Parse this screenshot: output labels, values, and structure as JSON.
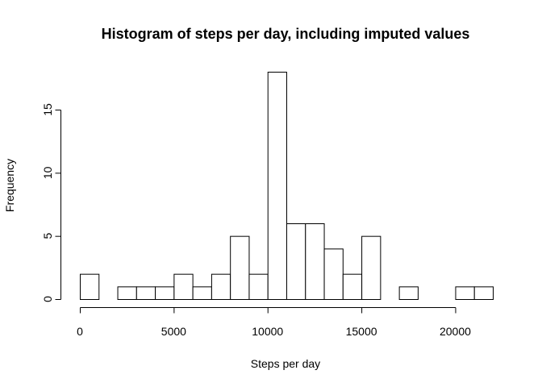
{
  "chart_data": {
    "type": "bar",
    "title": "Histogram of steps per day, including imputed values",
    "xlabel": "Steps per day",
    "ylabel": "Frequency",
    "bin_width": 1000,
    "bins": [
      {
        "start": 0,
        "end": 1000,
        "count": 2
      },
      {
        "start": 1000,
        "end": 2000,
        "count": 0
      },
      {
        "start": 2000,
        "end": 3000,
        "count": 1
      },
      {
        "start": 3000,
        "end": 4000,
        "count": 1
      },
      {
        "start": 4000,
        "end": 5000,
        "count": 1
      },
      {
        "start": 5000,
        "end": 6000,
        "count": 2
      },
      {
        "start": 6000,
        "end": 7000,
        "count": 1
      },
      {
        "start": 7000,
        "end": 8000,
        "count": 2
      },
      {
        "start": 8000,
        "end": 9000,
        "count": 5
      },
      {
        "start": 9000,
        "end": 10000,
        "count": 2
      },
      {
        "start": 10000,
        "end": 11000,
        "count": 18
      },
      {
        "start": 11000,
        "end": 12000,
        "count": 6
      },
      {
        "start": 12000,
        "end": 13000,
        "count": 6
      },
      {
        "start": 13000,
        "end": 14000,
        "count": 4
      },
      {
        "start": 14000,
        "end": 15000,
        "count": 2
      },
      {
        "start": 15000,
        "end": 16000,
        "count": 5
      },
      {
        "start": 16000,
        "end": 17000,
        "count": 0
      },
      {
        "start": 17000,
        "end": 18000,
        "count": 1
      },
      {
        "start": 18000,
        "end": 19000,
        "count": 0
      },
      {
        "start": 19000,
        "end": 20000,
        "count": 0
      },
      {
        "start": 20000,
        "end": 21000,
        "count": 1
      },
      {
        "start": 21000,
        "end": 22000,
        "count": 1
      }
    ],
    "xlim": [
      0,
      22000
    ],
    "ylim": [
      0,
      18
    ],
    "x_ticks": [
      0,
      5000,
      10000,
      15000,
      20000
    ],
    "y_ticks": [
      0,
      5,
      10,
      15
    ],
    "x_tick_labels": [
      "0",
      "5000",
      "10000",
      "15000",
      "20000"
    ],
    "y_tick_labels": [
      "0",
      "5",
      "10",
      "15"
    ],
    "grid": false,
    "legend": "none"
  }
}
